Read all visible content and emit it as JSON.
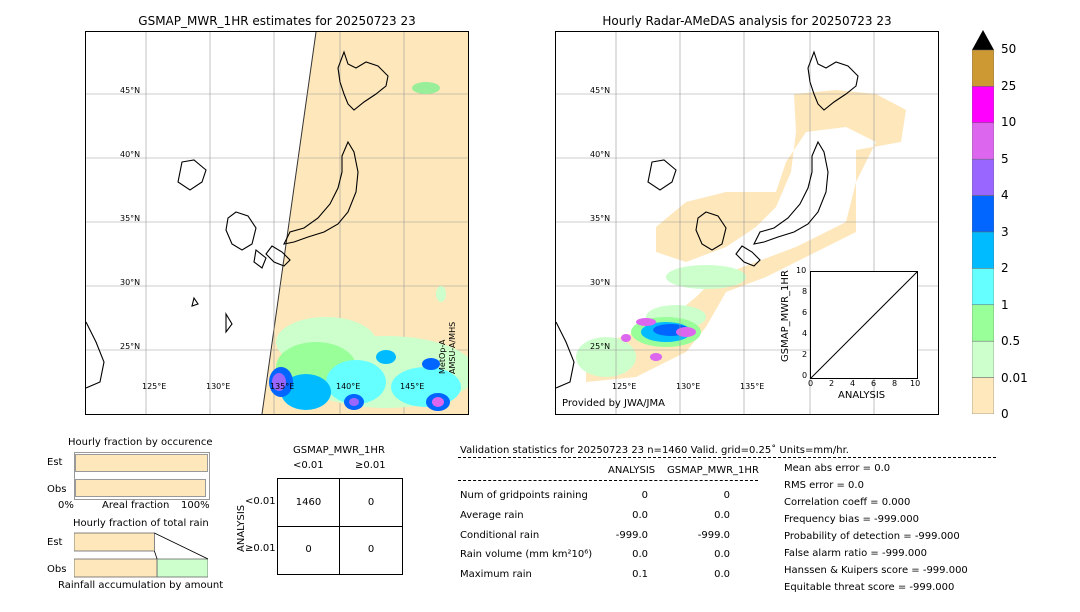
{
  "left_panel": {
    "title": "GSMAP_MWR_1HR estimates for 20250723 23",
    "lat_labels": [
      "45°N",
      "40°N",
      "35°N",
      "30°N",
      "25°N"
    ],
    "lon_labels": [
      "125°E",
      "130°E",
      "135°E",
      "140°E",
      "145°E"
    ],
    "sat_label_1": "MetOp-A",
    "sat_label_2": "AMSU-A/MHS"
  },
  "right_panel": {
    "title": "Hourly Radar-AMeDAS analysis for 20250723 23",
    "lat_labels": [
      "45°N",
      "40°N",
      "35°N",
      "30°N",
      "25°N"
    ],
    "lon_labels": [
      "125°E",
      "130°E",
      "135°E"
    ],
    "credit": "Provided by JWA/JMA"
  },
  "inset": {
    "ylabel": "GSMAP_MWR_1HR",
    "xlabel": "ANALYSIS",
    "ticks": [
      "0",
      "2",
      "4",
      "6",
      "8",
      "10"
    ]
  },
  "colorbar": {
    "labels": [
      "50",
      "25",
      "10",
      "5",
      "4",
      "3",
      "2",
      "1",
      "0.5",
      "0.01",
      "0"
    ],
    "colors": [
      "#cc9933",
      "#ff00ff",
      "#dd66ee",
      "#9966ff",
      "#0066ff",
      "#00bbff",
      "#66ffff",
      "#99ff99",
      "#ccffcc",
      "#ffe8bb"
    ],
    "over_color": "#000000"
  },
  "occurrence": {
    "title": "Hourly fraction by occurence",
    "row_est": "Est",
    "row_obs": "Obs",
    "axis_left": "0%",
    "axis_mid": "Areal fraction",
    "axis_right": "100%",
    "est_fraction": 0.99,
    "obs_fraction": 0.98
  },
  "amount": {
    "title": "Hourly fraction of total rain",
    "row_est": "Est",
    "row_obs": "Obs",
    "footer": "Rainfall accumulation by amount",
    "est_fraction": 0.6,
    "obs_fraction": 0.62
  },
  "contingency": {
    "title": "GSMAP_MWR_1HR",
    "col_lt": "<0.01",
    "col_ge": "≥0.01",
    "row_axis": "ANALYSIS",
    "row_lt": "<0.01",
    "row_ge": "≥0.01",
    "cells": [
      "1460",
      "0",
      "0",
      "0"
    ]
  },
  "validation": {
    "header": "Validation statistics for 20250723 23  n=1460 Valid. grid=0.25˚ Units=mm/hr.",
    "col_analysis": "ANALYSIS",
    "col_gsmap": "GSMAP_MWR_1HR",
    "rows": [
      {
        "label": "Num of gridpoints raining",
        "analysis": "0",
        "gsmap": "0"
      },
      {
        "label": "Average rain",
        "analysis": "0.0",
        "gsmap": "0.0"
      },
      {
        "label": "Conditional rain",
        "analysis": "-999.0",
        "gsmap": "-999.0"
      },
      {
        "label": "Rain volume (mm km²10⁶)",
        "analysis": "0.0",
        "gsmap": "0.0"
      },
      {
        "label": "Maximum rain",
        "analysis": "0.1",
        "gsmap": "0.0"
      }
    ],
    "scores": [
      "Mean abs error =    0.0",
      "RMS error =    0.0",
      "Correlation coeff =  0.000",
      "Frequency bias = -999.000",
      "Probability of detection = -999.000",
      "False alarm ratio = -999.000",
      "Hanssen & Kuipers score = -999.000",
      "Equitable threat score = -999.000"
    ]
  },
  "chart_data": {
    "type": "table",
    "title": "Validation statistics for 20250723 23  n=1460 Valid. grid=0.25˚ Units=mm/hr.",
    "columns": [
      "ANALYSIS",
      "GSMAP_MWR_1HR"
    ],
    "rows": [
      [
        "Num of gridpoints raining",
        0,
        0
      ],
      [
        "Average rain",
        0.0,
        0.0
      ],
      [
        "Conditional rain",
        -999.0,
        -999.0
      ],
      [
        "Rain volume (mm km²10⁶)",
        0.0,
        0.0
      ],
      [
        "Maximum rain",
        0.1,
        0.0
      ]
    ],
    "contingency_table": [
      [
        1460,
        0
      ],
      [
        0,
        0
      ]
    ]
  }
}
